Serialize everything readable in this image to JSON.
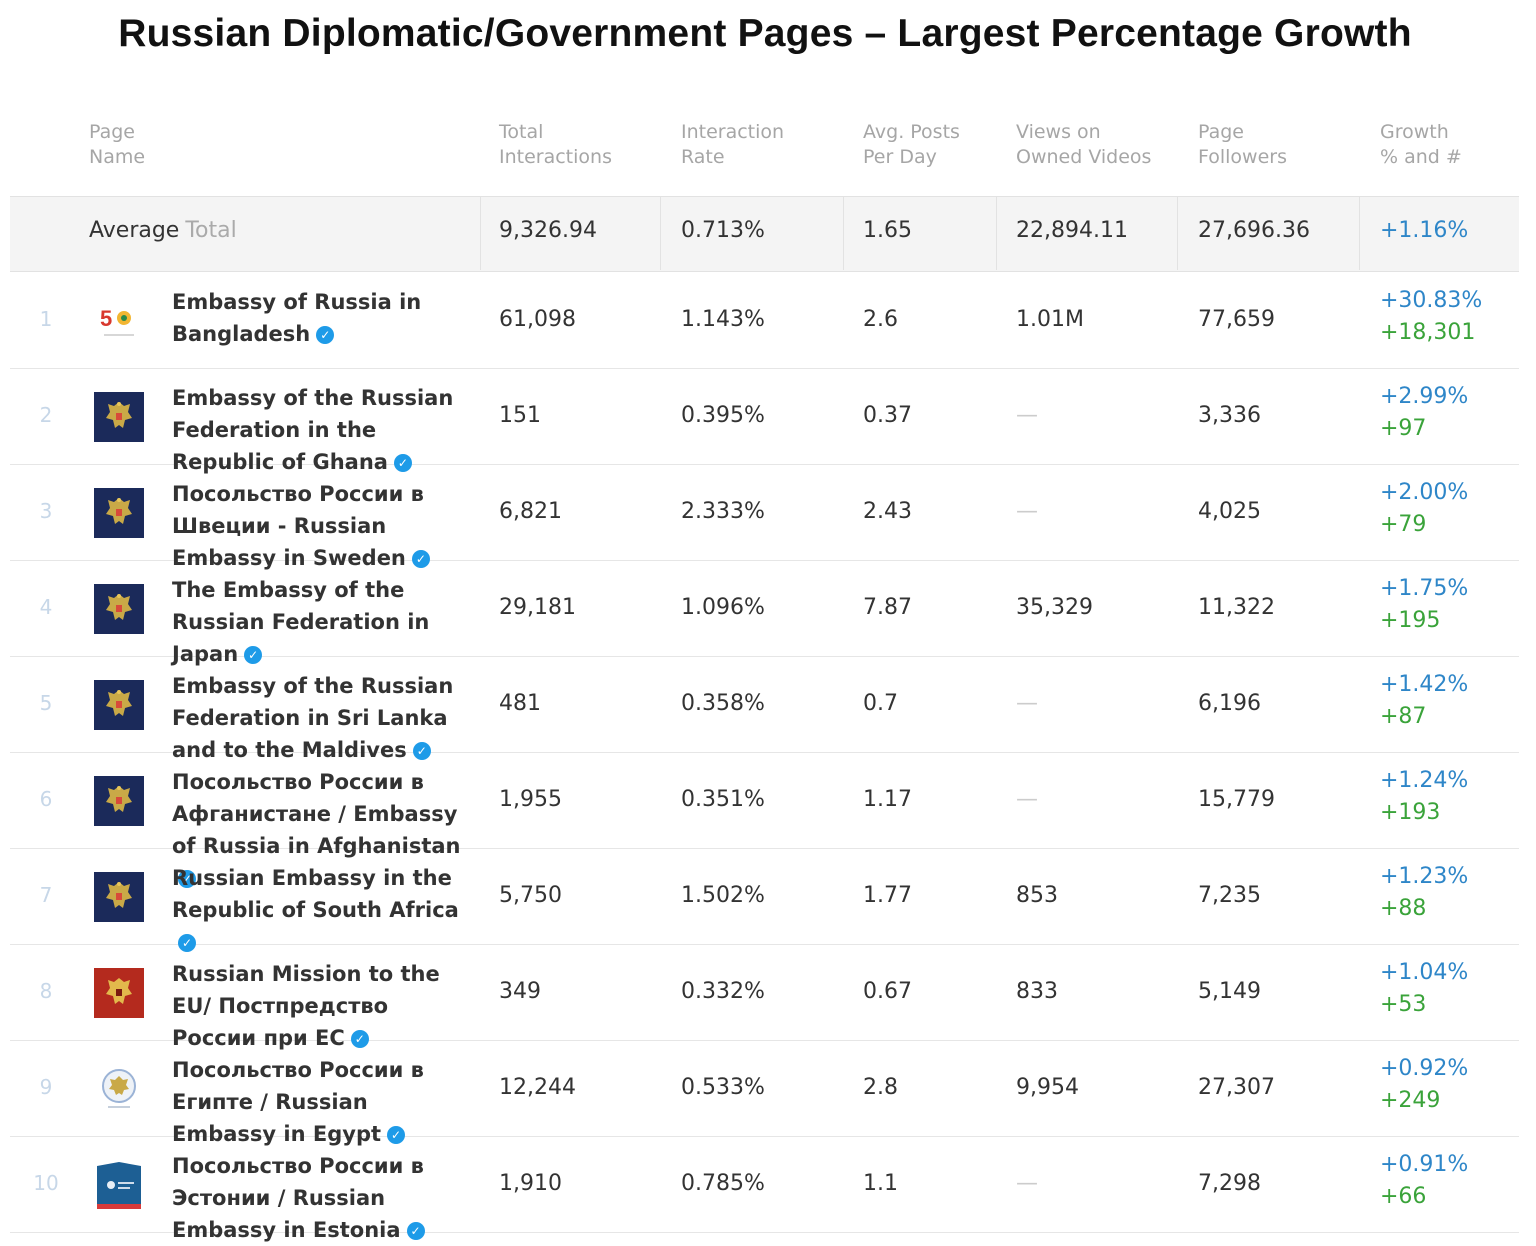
{
  "title": "Russian Diplomatic/Government Pages – Largest Percentage Growth",
  "headers": {
    "page_name": "Page\nName",
    "total_interactions": "Total\nInteractions",
    "interaction_rate": "Interaction\nRate",
    "avg_posts": "Avg. Posts\nPer Day",
    "views": "Views on\nOwned Videos",
    "followers": "Page\nFollowers",
    "growth": "Growth\n% and #"
  },
  "average": {
    "label": "Average",
    "sublabel": "Total",
    "total_interactions": "9,326.94",
    "interaction_rate": "0.713%",
    "avg_posts": "1.65",
    "views": "22,894.11",
    "followers": "27,696.36",
    "growth_pct": "+1.16%"
  },
  "rows": [
    {
      "rank": "1",
      "name": "Embassy of Russia in Bangladesh",
      "total": "61,098",
      "rate": "1.143%",
      "posts": "2.6",
      "views": "1.01M",
      "followers": "77,659",
      "growth_pct": "+30.83%",
      "growth_num": "+18,301",
      "logo": "bangladesh-50-logo"
    },
    {
      "rank": "2",
      "name": "Embassy of the Russian Federation in the Republic of Ghana",
      "total": "151",
      "rate": "0.395%",
      "posts": "0.37",
      "views": "—",
      "followers": "3,336",
      "growth_pct": "+2.99%",
      "growth_num": "+97",
      "logo": "russian-emblem-navy"
    },
    {
      "rank": "3",
      "name": "Посольство России в Швеции - Russian Embassy in Sweden",
      "total": "6,821",
      "rate": "2.333%",
      "posts": "2.43",
      "views": "—",
      "followers": "4,025",
      "growth_pct": "+2.00%",
      "growth_num": "+79",
      "logo": "russian-emblem-navy"
    },
    {
      "rank": "4",
      "name": "The Embassy of the Russian Federation in Japan",
      "total": "29,181",
      "rate": "1.096%",
      "posts": "7.87",
      "views": "35,329",
      "followers": "11,322",
      "growth_pct": "+1.75%",
      "growth_num": "+195",
      "logo": "russian-emblem-navy"
    },
    {
      "rank": "5",
      "name": "Embassy of the Russian Federation in Sri Lanka and to the Maldives",
      "total": "481",
      "rate": "0.358%",
      "posts": "0.7",
      "views": "—",
      "followers": "6,196",
      "growth_pct": "+1.42%",
      "growth_num": "+87",
      "logo": "russian-emblem-navy"
    },
    {
      "rank": "6",
      "name": "Посольство России в Афганистане / Embassy of Russia in Afghanistan",
      "total": "1,955",
      "rate": "0.351%",
      "posts": "1.17",
      "views": "—",
      "followers": "15,779",
      "growth_pct": "+1.24%",
      "growth_num": "+193",
      "logo": "russian-emblem-navy"
    },
    {
      "rank": "7",
      "name": "Russian Embassy in the Republic of South Africa",
      "total": "5,750",
      "rate": "1.502%",
      "posts": "1.77",
      "views": "853",
      "followers": "7,235",
      "growth_pct": "+1.23%",
      "growth_num": "+88",
      "logo": "russian-emblem-navy"
    },
    {
      "rank": "8",
      "name": "Russian Mission to the EU/ Постпредство России при ЕС",
      "total": "349",
      "rate": "0.332%",
      "posts": "0.67",
      "views": "833",
      "followers": "5,149",
      "growth_pct": "+1.04%",
      "growth_num": "+53",
      "logo": "russian-emblem-red"
    },
    {
      "rank": "9",
      "name": "Посольство России в Египте / Russian Embassy in Egypt",
      "total": "12,244",
      "rate": "0.533%",
      "posts": "2.8",
      "views": "9,954",
      "followers": "27,307",
      "growth_pct": "+0.92%",
      "growth_num": "+249",
      "logo": "egypt-embassy-seal"
    },
    {
      "rank": "10",
      "name": "Посольство России в Эстонии / Russian Embassy in Estonia",
      "total": "1,910",
      "rate": "0.785%",
      "posts": "1.1",
      "views": "—",
      "followers": "7,298",
      "growth_pct": "+0.91%",
      "growth_num": "+66",
      "logo": "estonia-embassy-logo"
    }
  ]
}
